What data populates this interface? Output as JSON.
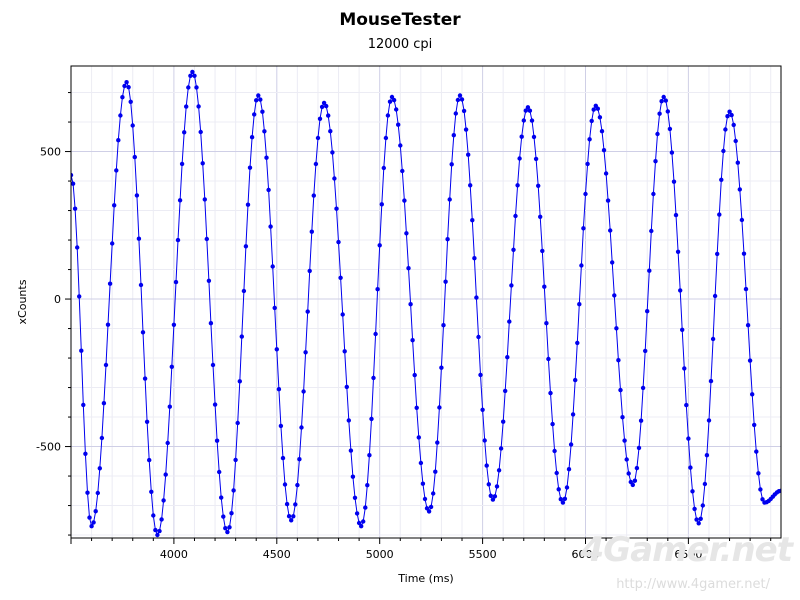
{
  "chart_data": {
    "type": "scatter",
    "title": "MouseTester",
    "subtitle": "12000 cpi",
    "xlabel": "Time (ms)",
    "ylabel": "xCounts",
    "xlim": [
      3500,
      6950
    ],
    "ylim": [
      -810,
      790
    ],
    "x_ticks": [
      "4000",
      "4500",
      "5000",
      "5500",
      "6000",
      "6500"
    ],
    "y_ticks": [
      "500",
      "0",
      "-500"
    ],
    "grid": true,
    "legend": "none",
    "series": [
      {
        "color": "#0000ee",
        "marker": "dot",
        "connected": true,
        "peaks": [
          {
            "x": 3500,
            "y": 420
          },
          {
            "x": 3600,
            "y": -770
          },
          {
            "x": 3770,
            "y": 735
          },
          {
            "x": 3920,
            "y": -800
          },
          {
            "x": 4090,
            "y": 770
          },
          {
            "x": 4260,
            "y": -790
          },
          {
            "x": 4410,
            "y": 690
          },
          {
            "x": 4570,
            "y": -750
          },
          {
            "x": 4730,
            "y": 665
          },
          {
            "x": 4910,
            "y": -770
          },
          {
            "x": 5060,
            "y": 685
          },
          {
            "x": 5240,
            "y": -720
          },
          {
            "x": 5390,
            "y": 690
          },
          {
            "x": 5550,
            "y": -680
          },
          {
            "x": 5720,
            "y": 650
          },
          {
            "x": 5890,
            "y": -690
          },
          {
            "x": 6050,
            "y": 655
          },
          {
            "x": 6230,
            "y": -630
          },
          {
            "x": 6380,
            "y": 685
          },
          {
            "x": 6550,
            "y": -760
          },
          {
            "x": 6700,
            "y": 635
          },
          {
            "x": 6870,
            "y": -690
          },
          {
            "x": 6950,
            "y": -650
          }
        ]
      }
    ]
  },
  "watermark": {
    "brand": "4Gamer.net",
    "url": "http://www.4gamer.net/"
  }
}
